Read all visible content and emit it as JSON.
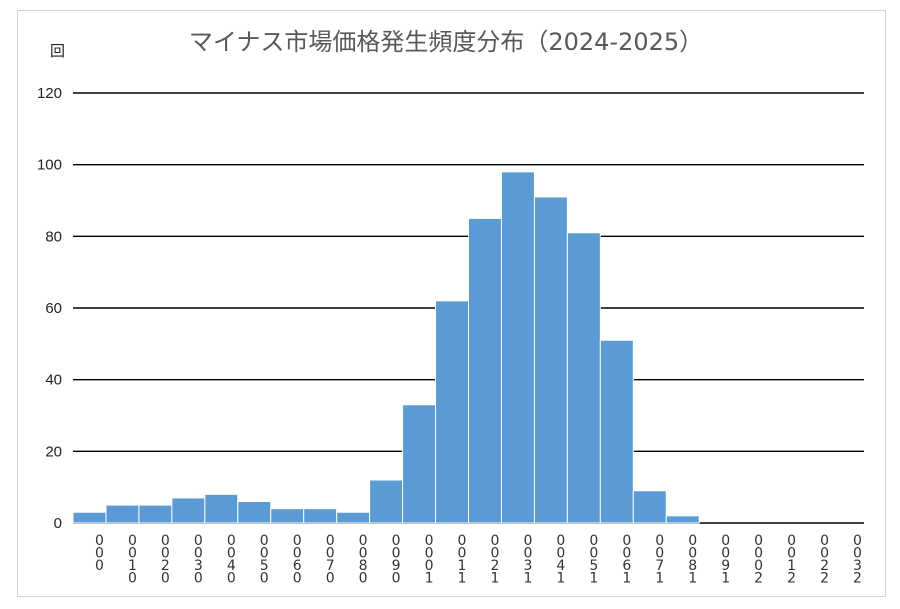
{
  "chart_data": {
    "type": "bar",
    "title": "マイナス市場価格発生頻度分布（2024-2025）",
    "ylabel": "回",
    "xlabel": "",
    "ylim": [
      0,
      120
    ],
    "yticks": [
      0,
      20,
      40,
      60,
      80,
      100,
      120
    ],
    "grid": true,
    "color": "#5b9bd5",
    "categories": [
      "0:00",
      "1:00",
      "2:00",
      "3:00",
      "4:00",
      "5:00",
      "6:00",
      "7:00",
      "8:00",
      "9:00",
      "10:00",
      "11:00",
      "12:00",
      "13:00",
      "14:00",
      "15:00",
      "16:00",
      "17:00",
      "18:00",
      "19:00",
      "20:00",
      "21:00",
      "22:00",
      "23:00"
    ],
    "category_labels_shown": [
      [
        "0",
        "0",
        "0"
      ],
      [
        "0",
        "0",
        "1",
        "0"
      ],
      [
        "0",
        "0",
        "2",
        "0"
      ],
      [
        "0",
        "0",
        "3",
        "0"
      ],
      [
        "0",
        "0",
        "4",
        "0"
      ],
      [
        "0",
        "0",
        "5",
        "0"
      ],
      [
        "0",
        "0",
        "6",
        "0"
      ],
      [
        "0",
        "0",
        "7",
        "0"
      ],
      [
        "0",
        "0",
        "8",
        "0"
      ],
      [
        "0",
        "0",
        "9",
        "0"
      ],
      [
        "0",
        "0",
        "0",
        "1"
      ],
      [
        "0",
        "0",
        "1",
        "1"
      ],
      [
        "0",
        "0",
        "2",
        "1"
      ],
      [
        "0",
        "0",
        "3",
        "1"
      ],
      [
        "0",
        "0",
        "4",
        "1"
      ],
      [
        "0",
        "0",
        "5",
        "1"
      ],
      [
        "0",
        "0",
        "6",
        "1"
      ],
      [
        "0",
        "0",
        "7",
        "1"
      ],
      [
        "0",
        "0",
        "8",
        "1"
      ],
      [
        "0",
        "0",
        "9",
        "1"
      ],
      [
        "0",
        "0",
        "0",
        "2"
      ],
      [
        "0",
        "0",
        "1",
        "2"
      ],
      [
        "0",
        "0",
        "2",
        "2"
      ],
      [
        "0",
        "0",
        "3",
        "2"
      ]
    ],
    "values": [
      3,
      5,
      5,
      7,
      8,
      6,
      4,
      4,
      3,
      12,
      33,
      62,
      85,
      98,
      91,
      81,
      51,
      9,
      2,
      0,
      0,
      0,
      0,
      0
    ]
  }
}
